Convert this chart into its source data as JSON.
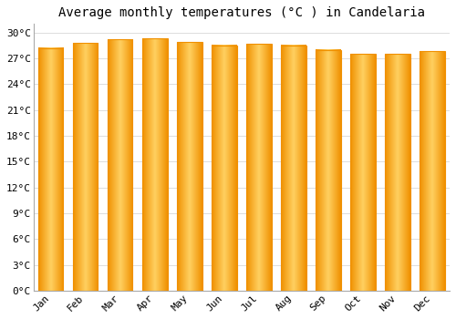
{
  "months": [
    "Jan",
    "Feb",
    "Mar",
    "Apr",
    "May",
    "Jun",
    "Jul",
    "Aug",
    "Sep",
    "Oct",
    "Nov",
    "Dec"
  ],
  "values": [
    28.2,
    28.8,
    29.2,
    29.3,
    28.9,
    28.5,
    28.7,
    28.5,
    28.0,
    27.5,
    27.5,
    27.8
  ],
  "bar_color_center": "#FFD060",
  "bar_color_edge": "#F09000",
  "title": "Average monthly temperatures (°C ) in Candelaria",
  "ylim": [
    0,
    31
  ],
  "yticks": [
    0,
    3,
    6,
    9,
    12,
    15,
    18,
    21,
    24,
    27,
    30
  ],
  "background_color": "#FFFFFF",
  "grid_color": "#DDDDDD",
  "title_fontsize": 10,
  "tick_fontsize": 8,
  "bar_width": 0.72
}
